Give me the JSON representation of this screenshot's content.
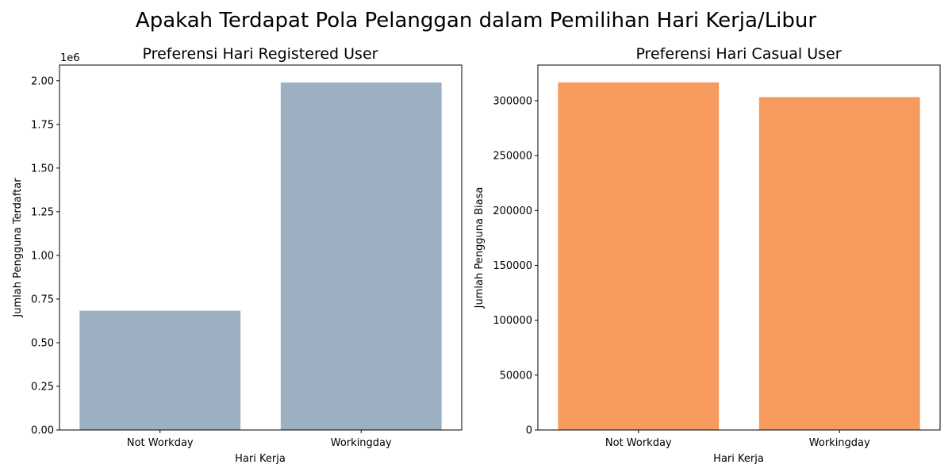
{
  "figure": {
    "suptitle": "Apakah Terdapat Pola Pelanggan dalam Pemilihan Hari Kerja/Libur"
  },
  "chart_data": [
    {
      "type": "bar",
      "title": "Preferensi Hari Registered User",
      "xlabel": "Hari Kerja",
      "ylabel": "Jumlah Pengguna Terdaftar",
      "categories": [
        "Not Workday",
        "Workingday"
      ],
      "values": [
        683000,
        1990000
      ],
      "ylim": [
        0,
        2090000
      ],
      "yticks": [
        0,
        250000,
        500000,
        750000,
        1000000,
        1250000,
        1500000,
        1750000,
        2000000
      ],
      "ytick_labels": [
        "0.00",
        "0.25",
        "0.50",
        "0.75",
        "1.00",
        "1.25",
        "1.50",
        "1.75",
        "2.00"
      ],
      "offset_label": "1e6",
      "color": "#9cb0c1",
      "grid": false
    },
    {
      "type": "bar",
      "title": "Preferensi Hari Casual User",
      "xlabel": "Hari Kerja",
      "ylabel": "Jumlah Pengguna Biasa",
      "categories": [
        "Not Workday",
        "Workingday"
      ],
      "values": [
        316700,
        303300
      ],
      "ylim": [
        0,
        332500
      ],
      "yticks": [
        0,
        50000,
        100000,
        150000,
        200000,
        250000,
        300000
      ],
      "ytick_labels": [
        "0",
        "50000",
        "100000",
        "150000",
        "200000",
        "250000",
        "300000"
      ],
      "offset_label": "",
      "color": "#f79a5d",
      "grid": false
    }
  ]
}
